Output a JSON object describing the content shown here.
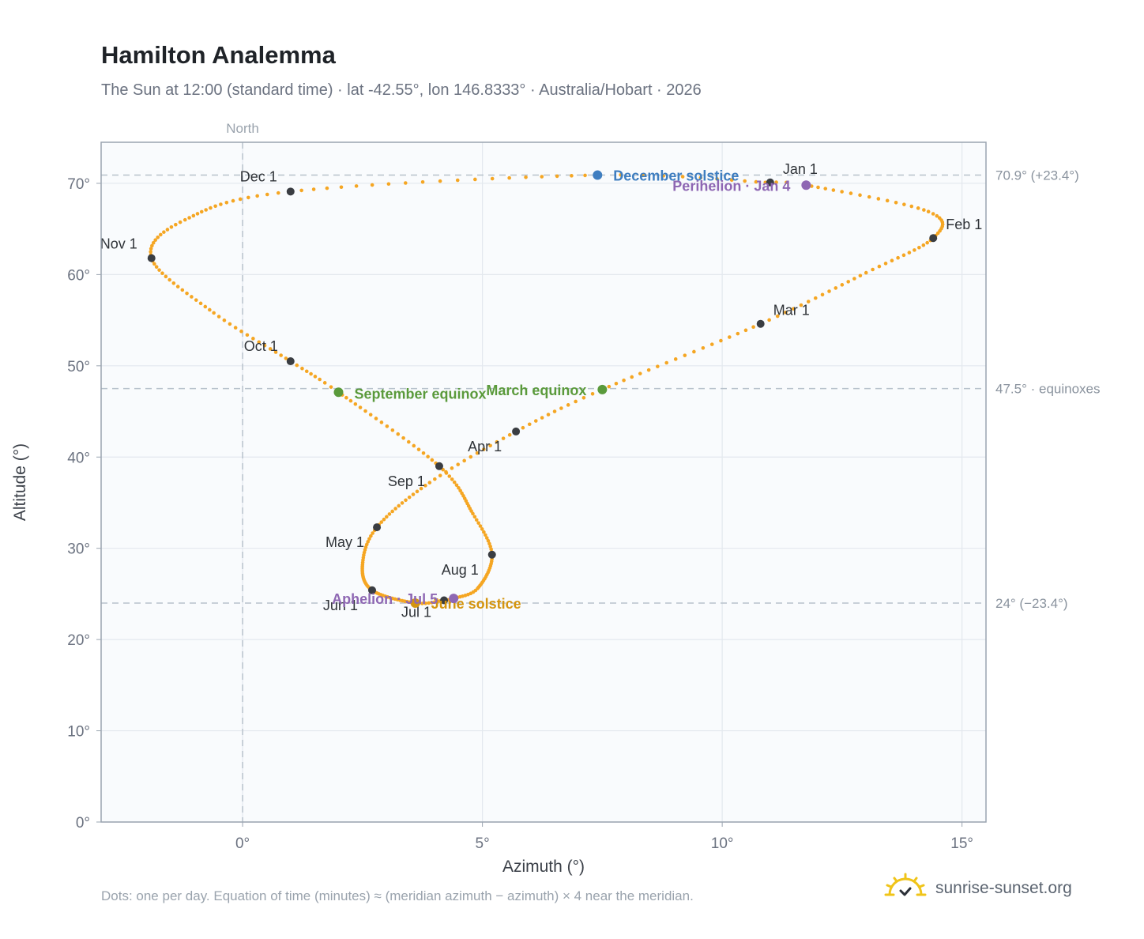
{
  "title": "Hamilton Analemma",
  "subtitle": "The Sun at 12:00 (standard time) · lat -42.55°, lon 146.8333° · Australia/Hobart · 2026",
  "footnote": "Dots: one per day. Equation of time (minutes) ≈ (meridian azimuth − azimuth) × 4 near the meridian.",
  "brand": {
    "name": "sunrise-sunset.org",
    "icon": "sun-logo-icon",
    "color": "#f0c419"
  },
  "colors": {
    "path": "#f5a623",
    "month_marker": "#3a3d42",
    "december_solstice": "#3f7ec0",
    "june_solstice": "#d4940e",
    "equinox": "#5a9a3b",
    "apsis": "#8e67b3",
    "plot_background": "#f9fbfd",
    "grid": "#e3e8ee",
    "reference_line": "#b8c2cc"
  },
  "chart_data": {
    "type": "scatter",
    "title": "Hamilton Analemma",
    "xlabel": "Azimuth (°)",
    "ylabel": "Altitude (°)",
    "xlim": [
      -2.95,
      15.5
    ],
    "ylim": [
      0,
      74.5
    ],
    "xticks": [
      {
        "value": 0,
        "label": "0°"
      },
      {
        "value": 5,
        "label": "5°"
      },
      {
        "value": 10,
        "label": "10°"
      },
      {
        "value": 15,
        "label": "15°"
      }
    ],
    "yticks": [
      {
        "value": 0,
        "label": "0°"
      },
      {
        "value": 10,
        "label": "10°"
      },
      {
        "value": 20,
        "label": "20°"
      },
      {
        "value": 30,
        "label": "30°"
      },
      {
        "value": 40,
        "label": "40°"
      },
      {
        "value": 50,
        "label": "50°"
      },
      {
        "value": 60,
        "label": "60°"
      },
      {
        "value": 70,
        "label": "70°"
      }
    ],
    "grid": true,
    "series": [
      {
        "marker_note": "one dot per day",
        "anchors": [
          {
            "date": "2026-01-01",
            "az": 11.0,
            "alt": 70.1
          },
          {
            "date": "2026-01-04",
            "az": 11.75,
            "alt": 69.8
          },
          {
            "date": "2026-01-20",
            "az": 14.3,
            "alt": 66.9
          },
          {
            "date": "2026-02-01",
            "az": 14.4,
            "alt": 64.0
          },
          {
            "date": "2026-02-14",
            "az": 13.0,
            "alt": 60.2
          },
          {
            "date": "2026-03-01",
            "az": 10.8,
            "alt": 54.6
          },
          {
            "date": "2026-03-20",
            "az": 7.5,
            "alt": 47.4
          },
          {
            "date": "2026-04-01",
            "az": 5.7,
            "alt": 42.8
          },
          {
            "date": "2026-04-15",
            "az": 3.9,
            "alt": 37.2
          },
          {
            "date": "2026-05-01",
            "az": 2.8,
            "alt": 32.3
          },
          {
            "date": "2026-05-15",
            "az": 2.5,
            "alt": 28.2
          },
          {
            "date": "2026-06-01",
            "az": 2.7,
            "alt": 25.4
          },
          {
            "date": "2026-06-21",
            "az": 3.6,
            "alt": 24.0
          },
          {
            "date": "2026-07-01",
            "az": 4.2,
            "alt": 24.3
          },
          {
            "date": "2026-07-05",
            "az": 4.4,
            "alt": 24.5
          },
          {
            "date": "2026-07-15",
            "az": 4.9,
            "alt": 25.6
          },
          {
            "date": "2026-08-01",
            "az": 5.2,
            "alt": 29.3
          },
          {
            "date": "2026-08-15",
            "az": 4.8,
            "alt": 33.8
          },
          {
            "date": "2026-09-01",
            "az": 4.1,
            "alt": 39.0
          },
          {
            "date": "2026-09-22",
            "az": 2.0,
            "alt": 47.1
          },
          {
            "date": "2026-10-01",
            "az": 1.0,
            "alt": 50.5
          },
          {
            "date": "2026-10-15",
            "az": -0.6,
            "alt": 55.8
          },
          {
            "date": "2026-11-01",
            "az": -1.9,
            "alt": 61.8
          },
          {
            "date": "2026-11-15",
            "az": -1.2,
            "alt": 66.0
          },
          {
            "date": "2026-12-01",
            "az": 1.0,
            "alt": 69.1
          },
          {
            "date": "2026-12-21",
            "az": 7.4,
            "alt": 70.9
          },
          {
            "date": "2026-12-31",
            "az": 10.9,
            "alt": 70.1
          }
        ]
      }
    ],
    "month_markers": [
      {
        "label": "Jan 1",
        "az": 11.0,
        "alt": 70.1,
        "anchor": "start",
        "dx": 16,
        "dy": -11
      },
      {
        "label": "Feb 1",
        "az": 14.4,
        "alt": 64.0,
        "anchor": "start",
        "dx": 16,
        "dy": -11
      },
      {
        "label": "Mar 1",
        "az": 10.8,
        "alt": 54.6,
        "anchor": "start",
        "dx": 16,
        "dy": -11
      },
      {
        "label": "Apr 1",
        "az": 5.7,
        "alt": 42.8,
        "anchor": "end",
        "dx": -18,
        "dy": 25
      },
      {
        "label": "May 1",
        "az": 2.8,
        "alt": 32.3,
        "anchor": "end",
        "dx": -16,
        "dy": 25
      },
      {
        "label": "Jun 1",
        "az": 2.7,
        "alt": 25.4,
        "anchor": "end",
        "dx": -18,
        "dy": 25
      },
      {
        "label": "Jul 1",
        "az": 4.2,
        "alt": 24.3,
        "anchor": "end",
        "dx": -16,
        "dy": 21
      },
      {
        "label": "Aug 1",
        "az": 5.2,
        "alt": 29.3,
        "anchor": "end",
        "dx": -17,
        "dy": 25
      },
      {
        "label": "Sep 1",
        "az": 4.1,
        "alt": 39.0,
        "anchor": "end",
        "dx": -18,
        "dy": 25
      },
      {
        "label": "Oct 1",
        "az": 1.0,
        "alt": 50.5,
        "anchor": "end",
        "dx": -16,
        "dy": -13
      },
      {
        "label": "Nov 1",
        "az": -1.9,
        "alt": 61.8,
        "anchor": "end",
        "dx": -18,
        "dy": -12
      },
      {
        "label": "Dec 1",
        "az": 1.0,
        "alt": 69.1,
        "anchor": "end",
        "dx": -17,
        "dy": -13
      }
    ],
    "events": [
      {
        "label": "December solstice",
        "az": 7.4,
        "alt": 70.9,
        "color": "#3f7ec0",
        "anchor": "start",
        "dx": 20,
        "dy": 7
      },
      {
        "label": "Perihelion · Jan 4",
        "az": 11.75,
        "alt": 69.8,
        "color": "#8e67b3",
        "anchor": "end",
        "dx": -20,
        "dy": 7
      },
      {
        "label": "March equinox",
        "az": 7.5,
        "alt": 47.4,
        "color": "#5a9a3b",
        "anchor": "end",
        "dx": -20,
        "dy": 7
      },
      {
        "label": "September equinox",
        "az": 2.0,
        "alt": 47.1,
        "color": "#5a9a3b",
        "anchor": "start",
        "dx": 20,
        "dy": 8
      },
      {
        "label": "June solstice",
        "az": 3.6,
        "alt": 24.0,
        "color": "#d4940e",
        "anchor": "start",
        "dx": 20,
        "dy": 7
      },
      {
        "label": "Aphelion · Jul 5",
        "az": 4.4,
        "alt": 24.5,
        "color": "#8e67b3",
        "anchor": "end",
        "dx": -20,
        "dy": 7
      }
    ],
    "reference_lines": [
      {
        "alt": 70.9,
        "label": "70.9° (+23.4°)"
      },
      {
        "alt": 47.5,
        "label": "47.5° · equinoxes"
      },
      {
        "alt": 24.0,
        "label": "24° (−23.4°)"
      }
    ],
    "north_line": {
      "az": 0,
      "label": "North"
    }
  }
}
